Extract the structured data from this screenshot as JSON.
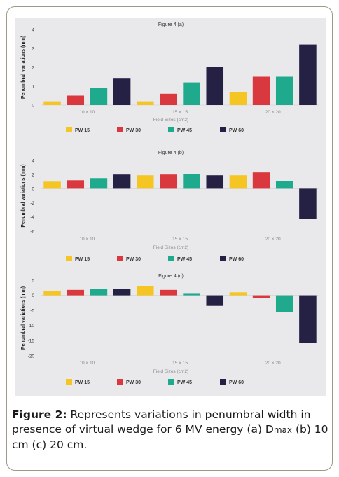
{
  "colors": {
    "PW 15": "#f5c623",
    "PW 30": "#d9383e",
    "PW 45": "#1fa98d",
    "PW 60": "#242145"
  },
  "chart_data": [
    {
      "type": "bar",
      "title": "Figure 4 (a)",
      "xlabel": "Field Sizes (cm2)",
      "ylabel": "Penumbral variations (mm)",
      "ylim": [
        0,
        4
      ],
      "yticks": [
        0,
        1,
        2,
        3,
        4
      ],
      "categories": [
        "10 × 10",
        "15 × 15",
        "20 × 20"
      ],
      "series": [
        {
          "name": "PW 15",
          "values": [
            0.2,
            0.2,
            0.7
          ]
        },
        {
          "name": "PW 30",
          "values": [
            0.5,
            0.6,
            1.5
          ]
        },
        {
          "name": "PW 45",
          "values": [
            0.9,
            1.2,
            1.5
          ]
        },
        {
          "name": "PW 60",
          "values": [
            1.4,
            2.0,
            3.2
          ]
        }
      ],
      "legend": "bottom",
      "grid": false
    },
    {
      "type": "bar",
      "title": "Figure 4 (b)",
      "xlabel": "Field Sizes (cm2)",
      "ylabel": "Penumbral variations (mm)",
      "ylim": [
        -6,
        4
      ],
      "yticks": [
        -6,
        -4,
        -2,
        0,
        2,
        4
      ],
      "categories": [
        "10 × 10",
        "15 × 15",
        "20 × 20"
      ],
      "series": [
        {
          "name": "PW 15",
          "values": [
            1.0,
            1.9,
            1.9
          ]
        },
        {
          "name": "PW 30",
          "values": [
            1.2,
            2.0,
            2.3
          ]
        },
        {
          "name": "PW 45",
          "values": [
            1.5,
            2.1,
            1.1
          ]
        },
        {
          "name": "PW 60",
          "values": [
            2.0,
            1.9,
            -4.3
          ]
        }
      ],
      "legend": "bottom",
      "grid": false
    },
    {
      "type": "bar",
      "title": "Figure 4 (c)",
      "xlabel": "Field Sizes (cm2)",
      "ylabel": "Penumbral variations (mm)",
      "ylim": [
        -20,
        5
      ],
      "yticks": [
        -20,
        -15,
        -10,
        -5,
        0,
        5
      ],
      "categories": [
        "10 × 10",
        "15 × 15",
        "20 × 20"
      ],
      "series": [
        {
          "name": "PW 15",
          "values": [
            1.5,
            3.0,
            1.0
          ]
        },
        {
          "name": "PW 30",
          "values": [
            1.8,
            1.8,
            -1.0
          ]
        },
        {
          "name": "PW 45",
          "values": [
            2.0,
            0.5,
            -5.5
          ]
        },
        {
          "name": "PW 60",
          "values": [
            2.1,
            -3.5,
            -15.8
          ]
        }
      ],
      "legend": "bottom",
      "grid": false
    }
  ],
  "caption": {
    "lead": "Figure 2:",
    "text_1": " Represents variations in penumbral width in presence of virtual wedge for 6 MV energy (a) D",
    "dmax": "max",
    "text_2": "  (b) 10 cm (c) 20 cm."
  }
}
